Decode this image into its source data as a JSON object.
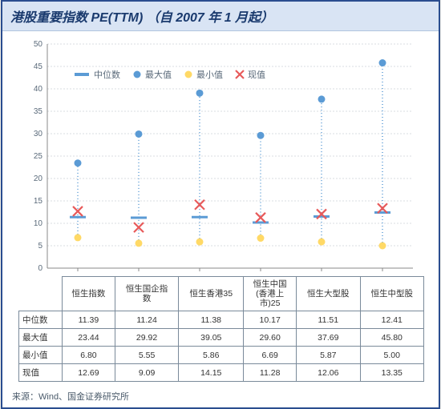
{
  "title": "港股重要指数 PE(TTM)  （自 2007 年 1 月起）",
  "source": "来源：Wind、国金证券研究所",
  "legend": {
    "median": "中位数",
    "max": "最大值",
    "min": "最小值",
    "current": "现值"
  },
  "chart": {
    "type": "range-dot",
    "ylim": [
      0,
      50
    ],
    "ytick_step": 5,
    "background_color": "#ffffff",
    "grid_color": "#d9dde2",
    "axis_color": "#888888",
    "colors": {
      "median": "#5b9bd5",
      "max": "#5b9bd5",
      "min": "#ffd966",
      "current": "#e85a5a",
      "range_line": "#5b9bd5"
    },
    "marker_sizes": {
      "dot": 4.5,
      "cross": 6
    },
    "categories": [
      "恒生指数",
      "恒生国企指数",
      "恒生香港35",
      "恒生中国(香港上市)25",
      "恒生大型股",
      "恒生中型股"
    ],
    "series": {
      "median": [
        11.39,
        11.24,
        11.38,
        10.17,
        11.51,
        12.41
      ],
      "max": [
        23.44,
        29.92,
        39.05,
        29.6,
        37.69,
        45.8
      ],
      "min": [
        6.8,
        5.55,
        5.86,
        6.69,
        5.87,
        5.0
      ],
      "current": [
        12.69,
        9.09,
        14.15,
        11.28,
        12.06,
        13.35
      ]
    }
  },
  "table": {
    "rows": [
      "中位数",
      "最大值",
      "最小值",
      "现值"
    ],
    "data": [
      [
        "11.39",
        "11.24",
        "11.38",
        "10.17",
        "11.51",
        "12.41"
      ],
      [
        "23.44",
        "29.92",
        "39.05",
        "29.60",
        "37.69",
        "45.80"
      ],
      [
        "6.80",
        "5.55",
        "5.86",
        "6.69",
        "5.87",
        "5.00"
      ],
      [
        "12.69",
        "9.09",
        "14.15",
        "11.28",
        "12.06",
        "13.35"
      ]
    ]
  }
}
